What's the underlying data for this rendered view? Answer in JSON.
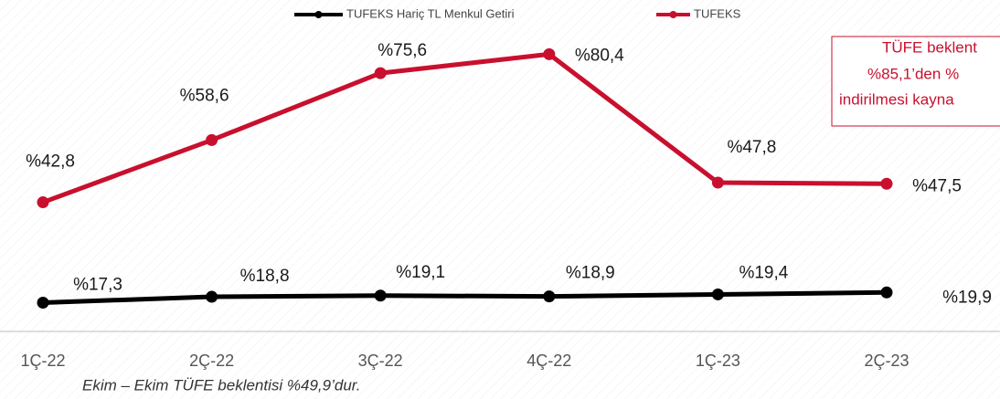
{
  "chart_data": {
    "type": "line",
    "categories": [
      "1Ç-22",
      "2Ç-22",
      "3Ç-22",
      "4Ç-22",
      "1Ç-23",
      "2Ç-23"
    ],
    "series": [
      {
        "name": "TUFEKS Hariç TL Menkul Getiri",
        "color": "#000000",
        "values": [
          17.3,
          18.8,
          19.1,
          18.9,
          19.4,
          19.9
        ],
        "value_labels": [
          "%17,3",
          "%18,8",
          "%19,1",
          "%18,9",
          "%19,4",
          "%19,9"
        ]
      },
      {
        "name": "TUFEKS",
        "color": "#c8102e",
        "values": [
          42.8,
          58.6,
          75.6,
          80.4,
          47.8,
          47.5
        ],
        "value_labels": [
          "%42,8",
          "%58,6",
          "%75,6",
          "%80,4",
          "%47,8",
          "%47,5"
        ]
      }
    ],
    "ylim": [
      10,
      90
    ],
    "annotation": [
      "TÜFE beklent",
      "%85,1’den %",
      "indirilmesi kayna"
    ],
    "footnote": "Ekim – Ekim TÜFE beklentisi %49,9’dur."
  }
}
